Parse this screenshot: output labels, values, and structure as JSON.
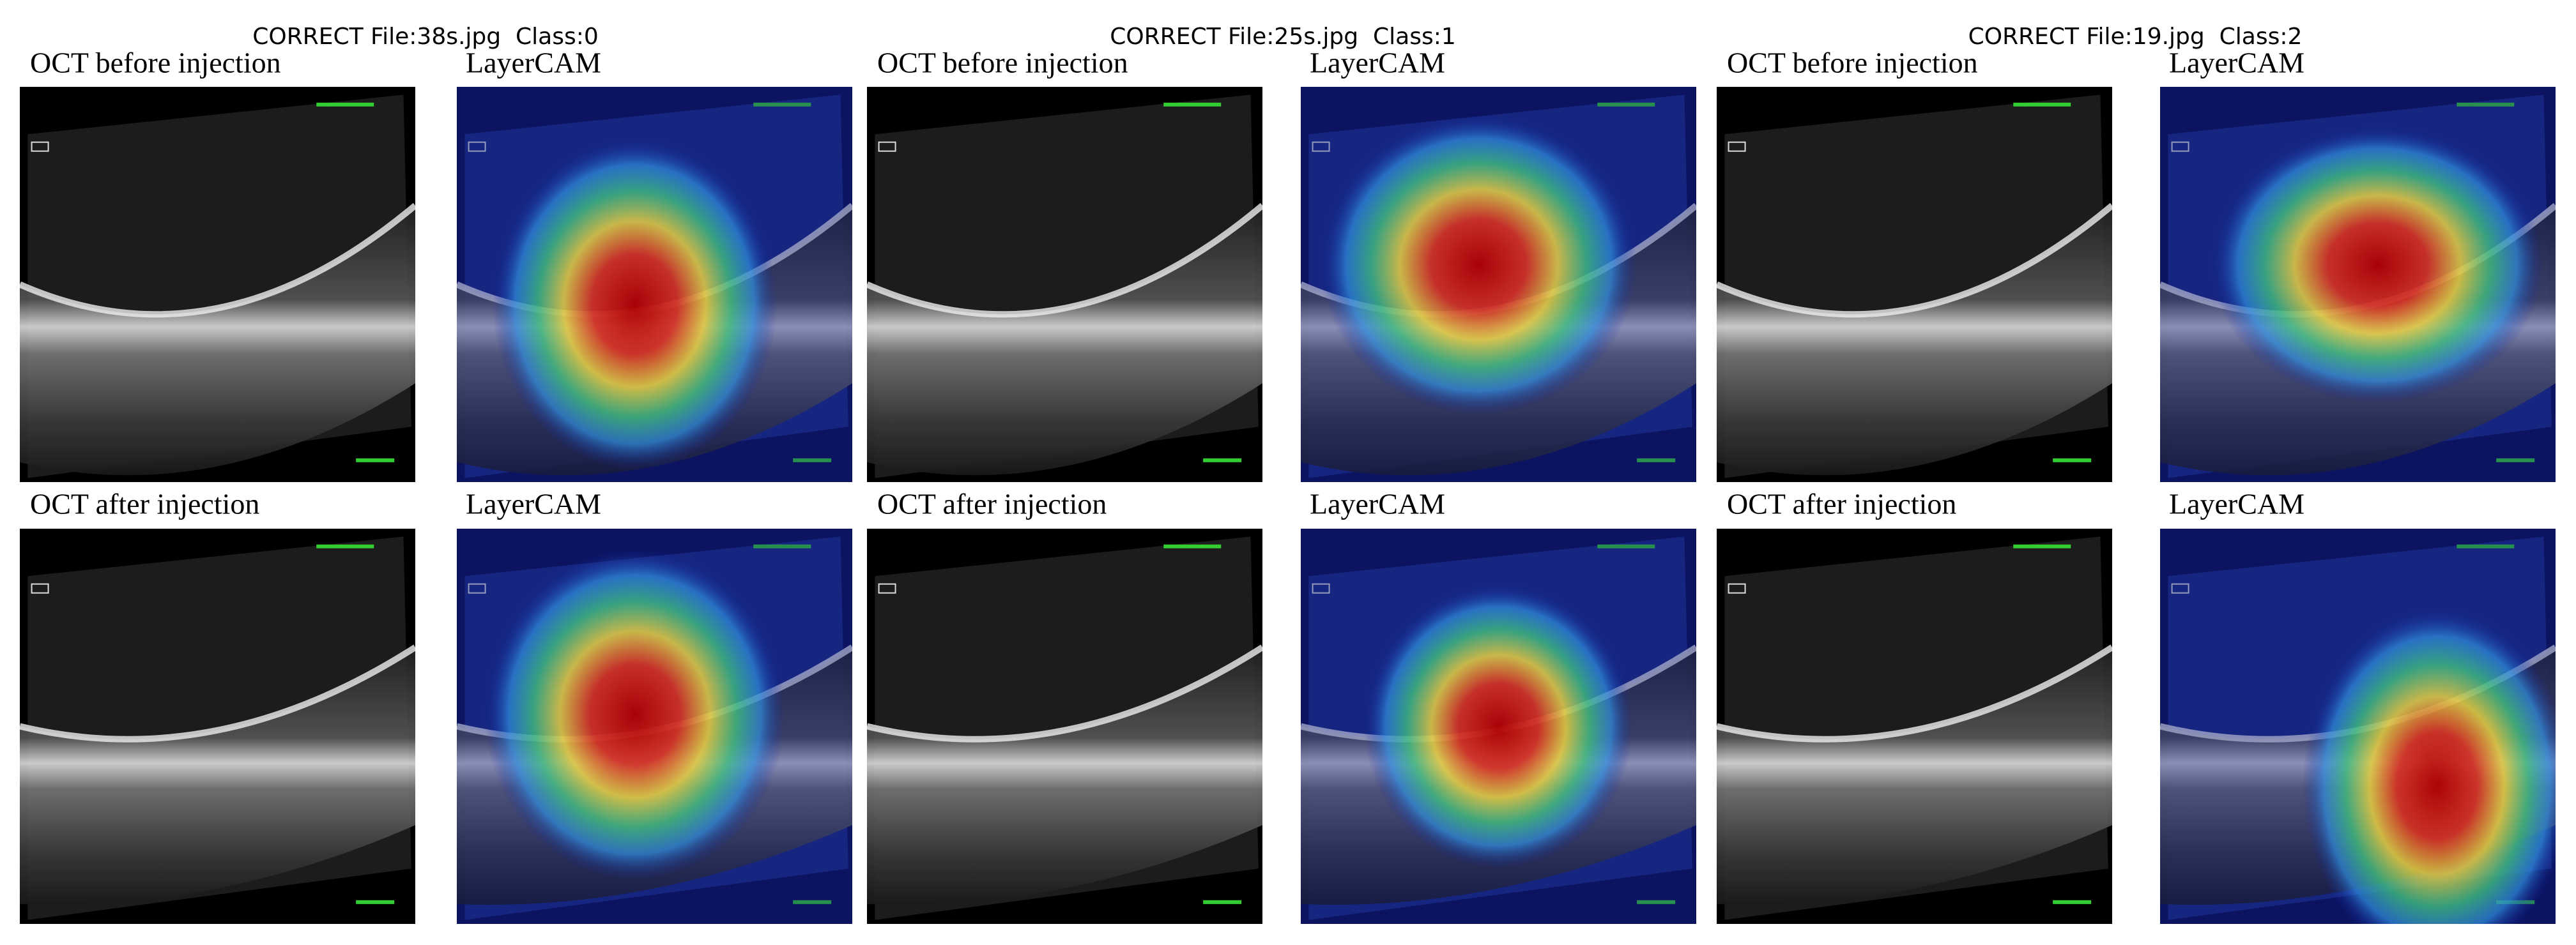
{
  "panels": [
    {
      "header": "CORRECT File:38s.jpg  Class:0",
      "images": [
        {
          "caption": "OCT before injection"
        },
        {
          "caption": "LayerCAM"
        },
        {
          "caption": "OCT after injection"
        },
        {
          "caption": "LayerCAM"
        }
      ]
    },
    {
      "header": "CORRECT File:25s.jpg  Class:1",
      "images": [
        {
          "caption": "OCT before injection"
        },
        {
          "caption": "LayerCAM"
        },
        {
          "caption": "OCT after injection"
        },
        {
          "caption": "LayerCAM"
        }
      ]
    },
    {
      "header": "CORRECT File:19.jpg  Class:2",
      "images": [
        {
          "caption": "OCT before injection"
        },
        {
          "caption": "LayerCAM"
        },
        {
          "caption": "OCT after injection"
        },
        {
          "caption": "LayerCAM"
        }
      ]
    }
  ]
}
